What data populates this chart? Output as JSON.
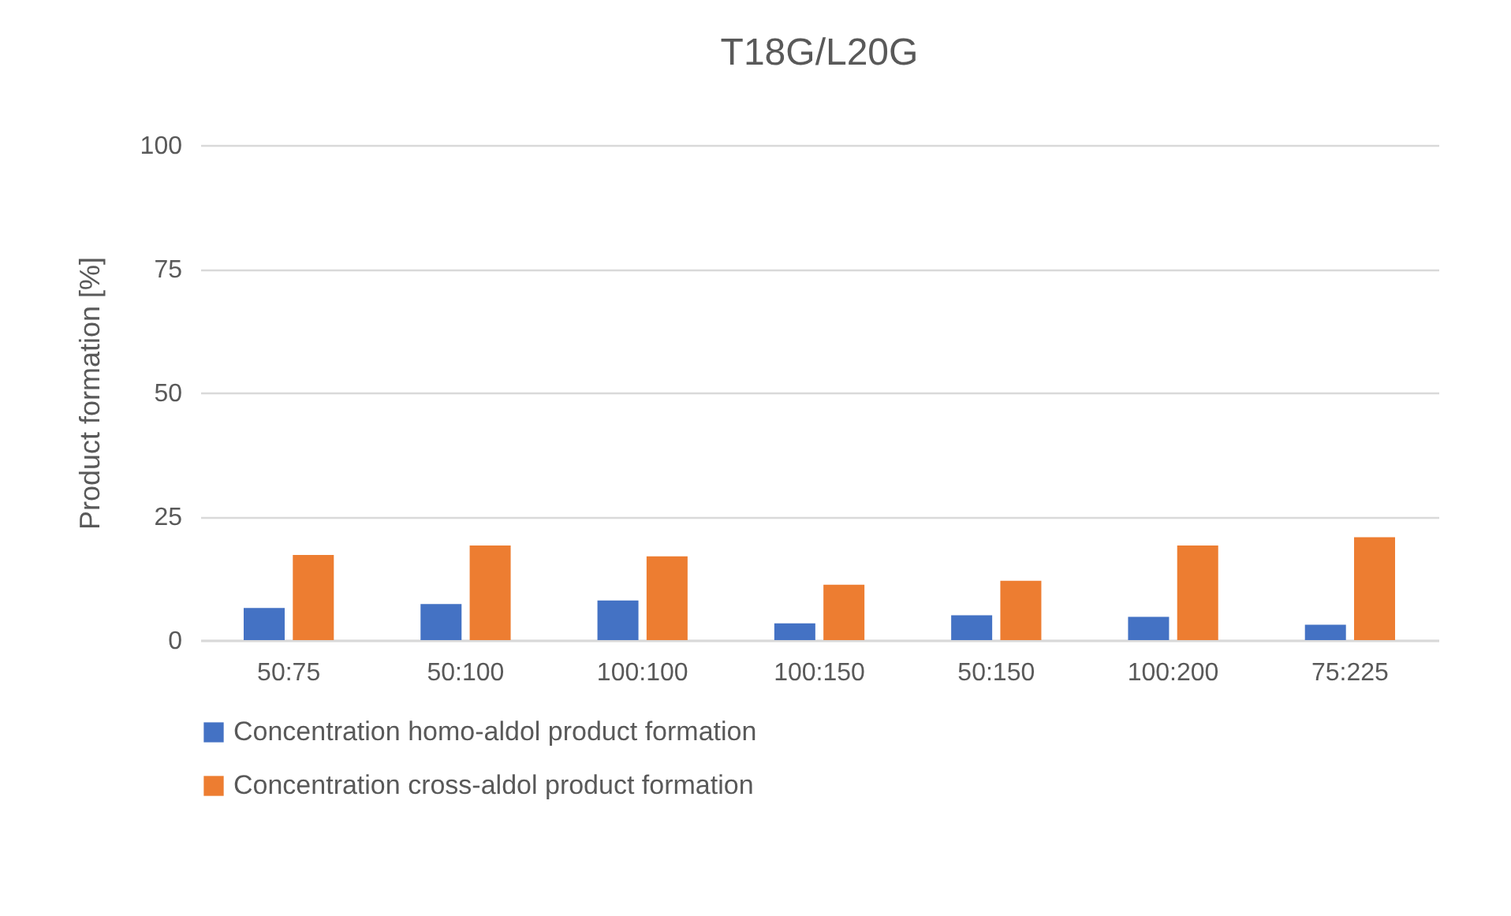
{
  "chart_data": {
    "type": "bar",
    "title": "T18G/L20G",
    "ylabel": "Product formation [%]",
    "categories": [
      "50:75",
      "50:100",
      "100:100",
      "100:150",
      "50:150",
      "100:200",
      "75:225"
    ],
    "series": [
      {
        "name": "Concentration homo-aldol product formation",
        "color": "#4472c4",
        "values": [
          6.5,
          7.3,
          8.0,
          3.4,
          5.0,
          4.7,
          3.1
        ]
      },
      {
        "name": "Concentration cross-aldol product formation",
        "color": "#ed7d31",
        "values": [
          17.2,
          19.1,
          16.9,
          11.2,
          12.0,
          19.1,
          20.8
        ]
      }
    ],
    "ylim": [
      0,
      100
    ],
    "yticks": [
      0,
      25,
      50,
      75,
      100
    ],
    "grid": "y",
    "legend": "bottom"
  }
}
